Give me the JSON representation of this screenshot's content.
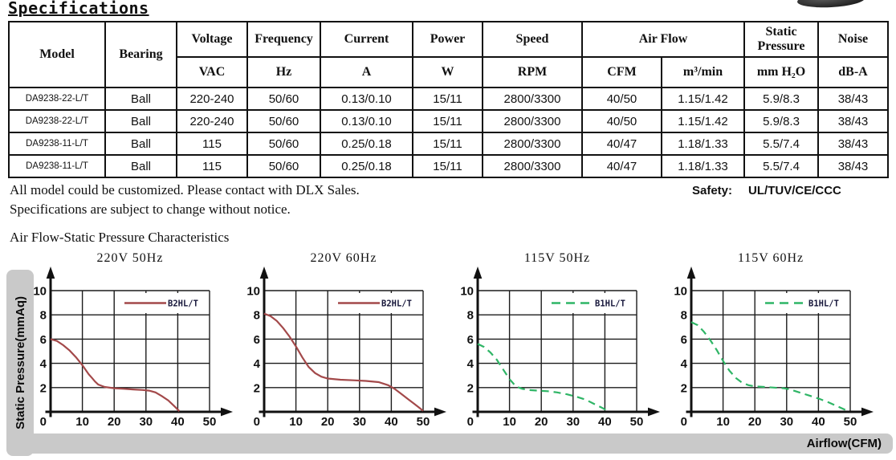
{
  "page": {
    "title": "Specifications"
  },
  "spec_table": {
    "header": {
      "model": "Model",
      "bearing": "Bearing",
      "groups": [
        {
          "label": "Voltage"
        },
        {
          "label": "Frequency"
        },
        {
          "label": "Current"
        },
        {
          "label": "Power"
        },
        {
          "label": "Speed"
        },
        {
          "label": "Air Flow"
        },
        {
          "label": "Static Pressure"
        },
        {
          "label": "Noise"
        }
      ],
      "units": [
        "VAC",
        "Hz",
        "A",
        "W",
        "RPM",
        "CFM",
        "m³/min",
        "mm H₂O",
        "dB-A"
      ]
    },
    "rows": [
      [
        "DA9238-22-L/T",
        "Ball",
        "220-240",
        "50/60",
        "0.13/0.10",
        "15/11",
        "2800/3300",
        "40/50",
        "1.15/1.42",
        "5.9/8.3",
        "38/43"
      ],
      [
        "DA9238-22-L/T",
        "Ball",
        "220-240",
        "50/60",
        "0.13/0.10",
        "15/11",
        "2800/3300",
        "40/50",
        "1.15/1.42",
        "5.9/8.3",
        "38/43"
      ],
      [
        "DA9238-11-L/T",
        "Ball",
        "115",
        "50/60",
        "0.25/0.18",
        "15/11",
        "2800/3300",
        "40/47",
        "1.18/1.33",
        "5.5/7.4",
        "38/43"
      ],
      [
        "DA9238-11-L/T",
        "Ball",
        "115",
        "50/60",
        "0.25/0.18",
        "15/11",
        "2800/3300",
        "40/47",
        "1.18/1.33",
        "5.5/7.4",
        "38/43"
      ]
    ]
  },
  "notes": {
    "line1": "All model could be customized. Please contact with DLX Sales.",
    "line2": "Specifications are subject to change without notice.",
    "safety_label": "Safety:",
    "safety_value": "UL/TUV/CE/CCC"
  },
  "section": {
    "title": "Air Flow-Static Pressure Characteristics"
  },
  "axis": {
    "y_label": "Static Pressure(mmAq)",
    "x_label": "Airflow(CFM)"
  },
  "colors": {
    "curve_red": "#a3494a",
    "curve_green": "#2fb566",
    "bar_gray": "#c9c9c9"
  },
  "chart_data": [
    {
      "type": "line",
      "title": "220V 50Hz",
      "xlabel": "Airflow(CFM)",
      "ylabel": "Static Pressure(mmAq)",
      "xlim": [
        0,
        50
      ],
      "ylim": [
        0,
        10
      ],
      "xticks": [
        0,
        10,
        20,
        30,
        40,
        50
      ],
      "yticks": [
        0,
        2,
        4,
        6,
        8,
        10
      ],
      "grid": true,
      "legend_position": "top-right",
      "series": [
        {
          "name": "B2HL/T",
          "color": "#a3494a",
          "style": "solid",
          "points": [
            [
              0,
              6.0
            ],
            [
              2,
              5.85
            ],
            [
              4,
              5.5
            ],
            [
              6,
              5.05
            ],
            [
              8,
              4.5
            ],
            [
              10,
              3.85
            ],
            [
              12,
              3.1
            ],
            [
              13,
              2.8
            ],
            [
              14,
              2.5
            ],
            [
              15,
              2.25
            ],
            [
              17,
              2.05
            ],
            [
              20,
              1.95
            ],
            [
              23,
              1.9
            ],
            [
              26,
              1.85
            ],
            [
              29,
              1.8
            ],
            [
              31,
              1.75
            ],
            [
              33,
              1.6
            ],
            [
              35,
              1.3
            ],
            [
              37,
              0.95
            ],
            [
              39,
              0.45
            ],
            [
              40.5,
              0.05
            ]
          ]
        }
      ]
    },
    {
      "type": "line",
      "title": "220V 60Hz",
      "xlabel": "Airflow(CFM)",
      "ylabel": "Static Pressure(mmAq)",
      "xlim": [
        0,
        50
      ],
      "ylim": [
        0,
        10
      ],
      "xticks": [
        0,
        10,
        20,
        30,
        40,
        50
      ],
      "yticks": [
        0,
        2,
        4,
        6,
        8,
        10
      ],
      "grid": true,
      "legend_position": "top-right",
      "series": [
        {
          "name": "B2HL/T",
          "color": "#a3494a",
          "style": "solid",
          "points": [
            [
              0,
              8.1
            ],
            [
              2,
              7.9
            ],
            [
              4,
              7.5
            ],
            [
              6,
              6.9
            ],
            [
              8,
              6.2
            ],
            [
              10,
              5.4
            ],
            [
              12,
              4.5
            ],
            [
              14,
              3.7
            ],
            [
              16,
              3.2
            ],
            [
              18,
              2.9
            ],
            [
              20,
              2.75
            ],
            [
              24,
              2.65
            ],
            [
              28,
              2.6
            ],
            [
              32,
              2.55
            ],
            [
              36,
              2.45
            ],
            [
              39,
              2.2
            ],
            [
              41,
              1.9
            ],
            [
              43,
              1.5
            ],
            [
              45,
              1.1
            ],
            [
              47,
              0.7
            ],
            [
              49,
              0.3
            ],
            [
              50,
              0.08
            ]
          ]
        }
      ]
    },
    {
      "type": "line",
      "title": "115V 50Hz",
      "xlabel": "Airflow(CFM)",
      "ylabel": "Static Pressure(mmAq)",
      "xlim": [
        0,
        50
      ],
      "ylim": [
        0,
        10
      ],
      "xticks": [
        0,
        10,
        20,
        30,
        40,
        50
      ],
      "yticks": [
        0,
        2,
        4,
        6,
        8,
        10
      ],
      "grid": true,
      "legend_position": "top-right",
      "series": [
        {
          "name": "B1HL/T",
          "color": "#2fb566",
          "style": "dashed",
          "points": [
            [
              0,
              5.6
            ],
            [
              2,
              5.35
            ],
            [
              4,
              4.9
            ],
            [
              6,
              4.3
            ],
            [
              8,
              3.5
            ],
            [
              10,
              2.7
            ],
            [
              12,
              2.1
            ],
            [
              14,
              1.9
            ],
            [
              16,
              1.8
            ],
            [
              19,
              1.75
            ],
            [
              22,
              1.7
            ],
            [
              25,
              1.6
            ],
            [
              28,
              1.45
            ],
            [
              31,
              1.25
            ],
            [
              34,
              1.0
            ],
            [
              37,
              0.6
            ],
            [
              39,
              0.35
            ],
            [
              41,
              0.05
            ]
          ]
        }
      ]
    },
    {
      "type": "line",
      "title": "115V 60Hz",
      "xlabel": "Airflow(CFM)",
      "ylabel": "Static Pressure(mmAq)",
      "xlim": [
        0,
        50
      ],
      "ylim": [
        0,
        10
      ],
      "xticks": [
        0,
        10,
        20,
        30,
        40,
        50
      ],
      "yticks": [
        0,
        2,
        4,
        6,
        8,
        10
      ],
      "grid": true,
      "legend_position": "top-right",
      "series": [
        {
          "name": "B1HL/T",
          "color": "#2fb566",
          "style": "dashed",
          "points": [
            [
              0,
              7.4
            ],
            [
              2,
              7.15
            ],
            [
              4,
              6.6
            ],
            [
              6,
              5.9
            ],
            [
              8,
              5.1
            ],
            [
              10,
              4.2
            ],
            [
              12,
              3.4
            ],
            [
              14,
              2.8
            ],
            [
              16,
              2.4
            ],
            [
              18,
              2.2
            ],
            [
              20,
              2.1
            ],
            [
              23,
              2.05
            ],
            [
              26,
              2.0
            ],
            [
              29,
              1.95
            ],
            [
              31,
              1.85
            ],
            [
              34,
              1.6
            ],
            [
              37,
              1.35
            ],
            [
              40,
              1.1
            ],
            [
              43,
              0.8
            ],
            [
              46,
              0.45
            ],
            [
              49,
              0.1
            ]
          ]
        }
      ]
    }
  ]
}
